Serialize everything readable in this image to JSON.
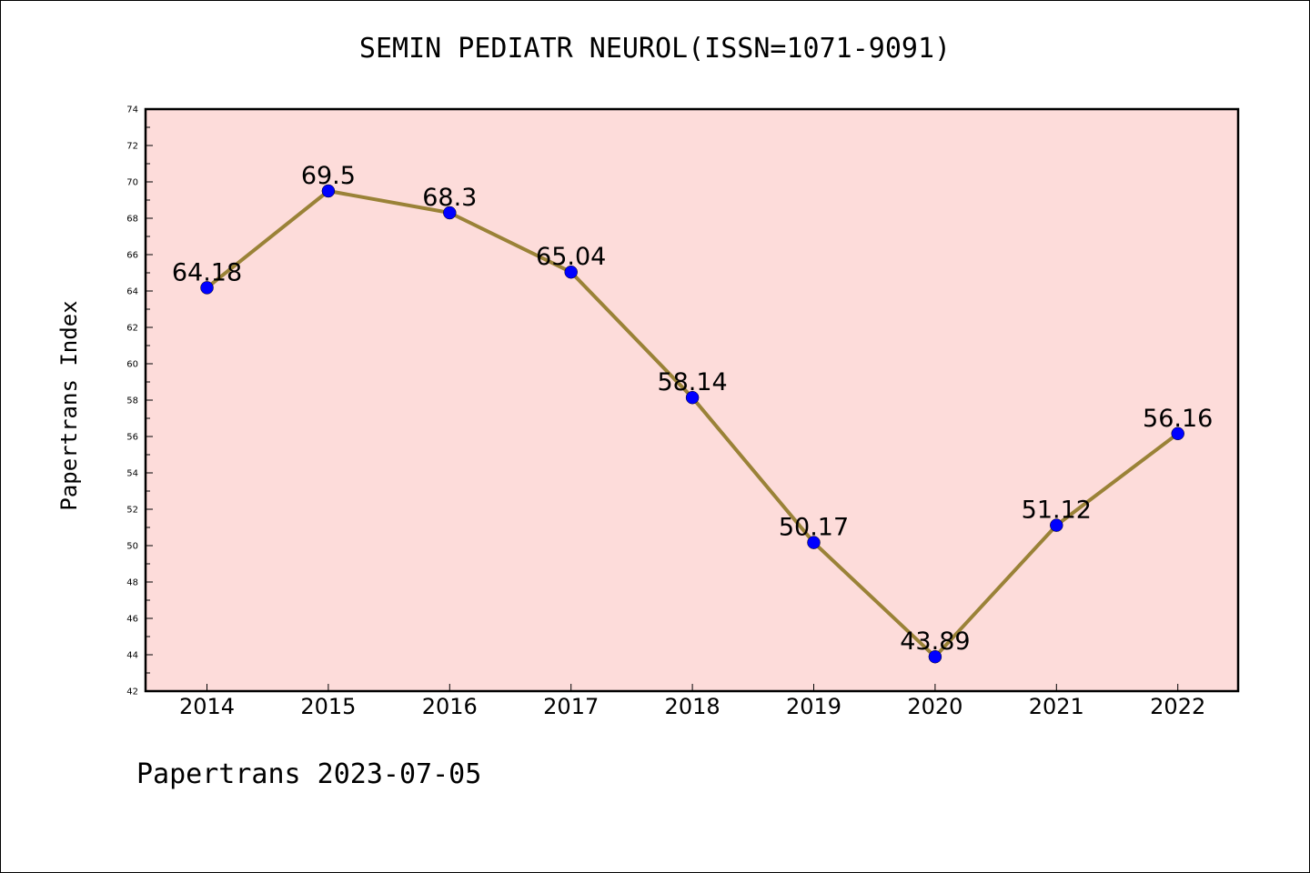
{
  "chart_data": {
    "type": "line",
    "title": "SEMIN PEDIATR NEUROL(ISSN=1071-9091)",
    "xlabel": "",
    "ylabel": "Papertrans Index",
    "categories": [
      "2014",
      "2015",
      "2016",
      "2017",
      "2018",
      "2019",
      "2020",
      "2021",
      "2022"
    ],
    "values": [
      64.18,
      69.5,
      68.3,
      65.04,
      58.14,
      50.17,
      43.89,
      51.12,
      56.16
    ],
    "data_labels": [
      "64.18",
      "69.5",
      "68.3",
      "65.04",
      "58.14",
      "50.17",
      "43.89",
      "51.12",
      "56.16"
    ],
    "ylim": [
      42,
      74
    ],
    "y_ticks": [
      "42",
      "44",
      "46",
      "48",
      "50",
      "52",
      "54",
      "56",
      "58",
      "60",
      "62",
      "64",
      "66",
      "68",
      "70",
      "72",
      "74"
    ],
    "grid": false,
    "legend": "none",
    "colors": {
      "plot_background": "#fddcda",
      "line": "#9a8237",
      "marker": "#0000ff"
    }
  },
  "footer": "Papertrans 2023-07-05"
}
